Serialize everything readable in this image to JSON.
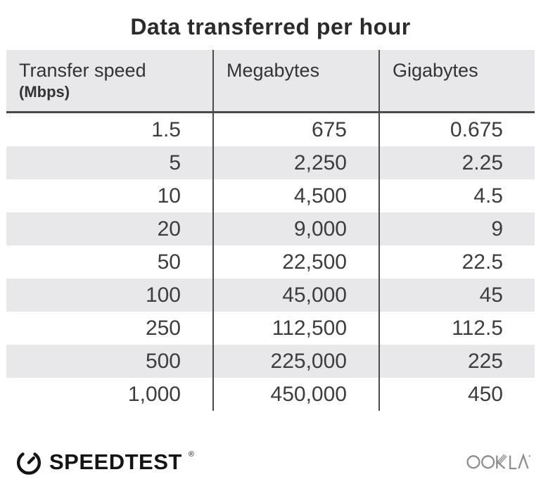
{
  "title": "Data transferred per hour",
  "table": {
    "columns": [
      {
        "label": "Transfer speed",
        "sublabel": "(Mbps)"
      },
      {
        "label": "Megabytes",
        "sublabel": ""
      },
      {
        "label": "Gigabytes",
        "sublabel": ""
      }
    ],
    "rows": [
      [
        "1.5",
        "675",
        "0.675"
      ],
      [
        "5",
        "2,250",
        "2.25"
      ],
      [
        "10",
        "4,500",
        "4.5"
      ],
      [
        "20",
        "9,000",
        "9"
      ],
      [
        "50",
        "22,500",
        "22.5"
      ],
      [
        "100",
        "45,000",
        "45"
      ],
      [
        "250",
        "112,500",
        "112.5"
      ],
      [
        "500",
        "225,000",
        "225"
      ],
      [
        "1,000",
        "450,000",
        "450"
      ]
    ]
  },
  "chart_data": {
    "type": "table",
    "title": "Data transferred per hour",
    "columns": [
      "Transfer speed (Mbps)",
      "Megabytes",
      "Gigabytes"
    ],
    "rows": [
      [
        1.5,
        675,
        0.675
      ],
      [
        5,
        2250,
        2.25
      ],
      [
        10,
        4500,
        4.5
      ],
      [
        20,
        9000,
        9
      ],
      [
        50,
        22500,
        22.5
      ],
      [
        100,
        45000,
        45
      ],
      [
        250,
        112500,
        112.5
      ],
      [
        500,
        225000,
        225
      ],
      [
        1000,
        450000,
        450
      ]
    ]
  },
  "footer": {
    "speedtest_label": "SPEEDTEST",
    "speedtest_mark": "®",
    "ookla_label": "OOKLA"
  },
  "colors": {
    "row_alt_bg": "#e8e8eb",
    "header_bg": "#e8e8eb",
    "divider": "#4a4a4a",
    "title_text": "#2b2b2b",
    "data_text": "#3d3d3d",
    "speedtest_black": "#141414",
    "ookla_gray": "#8e8e8e"
  }
}
